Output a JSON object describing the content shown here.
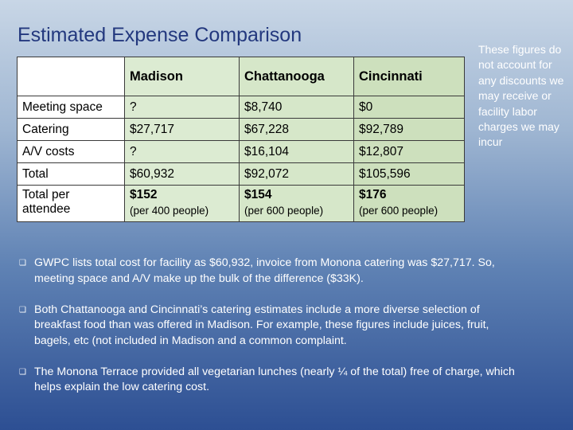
{
  "title": "Estimated Expense Comparison",
  "side_note": "These figures do not account for any discounts we may receive or facility labor charges we may incur",
  "table": {
    "headers": [
      "",
      "Madison",
      "Chattanooga",
      "Cincinnati"
    ],
    "rows": [
      {
        "label": "Meeting space",
        "madison": "?",
        "chattanooga": "$8,740",
        "cincinnati": "$0"
      },
      {
        "label": "Catering",
        "madison": "$27,717",
        "chattanooga": "$67,228",
        "cincinnati": "$92,789"
      },
      {
        "label": "A/V costs",
        "madison": "?",
        "chattanooga": "$16,104",
        "cincinnati": "$12,807"
      },
      {
        "label": "Total",
        "madison": "$60,932",
        "chattanooga": "$92,072",
        "cincinnati": "$105,596"
      }
    ],
    "per_attendee": {
      "label": "Total per attendee",
      "madison": {
        "value": "$152",
        "note": "(per 400 people)"
      },
      "chattanooga": {
        "value": "$154",
        "note": "(per 600 people)"
      },
      "cincinnati": {
        "value": "$176",
        "note": "(per 600 people)"
      }
    }
  },
  "bullets": [
    "GWPC lists total cost for facility as $60,932, invoice from Monona catering was $27,717.  So, meeting space and A/V make up the bulk of the difference ($33K).",
    "Both Chattanooga and Cincinnati’s catering estimates include a more diverse selection of breakfast food than was offered in Madison.  For example, these figures include juices, fruit, bagels, etc (not included in Madison and a common complaint.",
    "The Monona Terrace provided all vegetarian lunches (nearly ¼ of the total) free of charge, which helps explain the low catering cost."
  ],
  "bullet_marker": "❑"
}
